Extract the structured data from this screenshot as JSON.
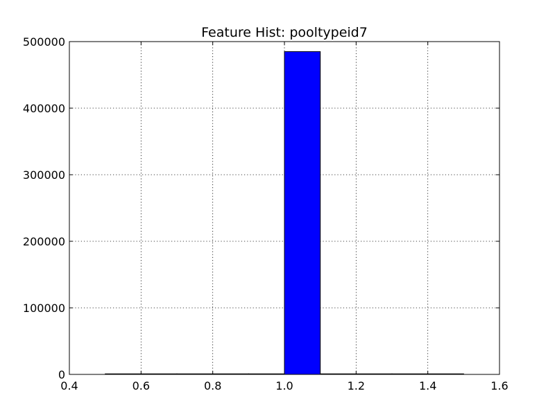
{
  "chart_data": {
    "type": "bar",
    "title": "Feature Hist: pooltypeid7",
    "xlabel": "",
    "ylabel": "",
    "xlim": [
      0.4,
      1.6
    ],
    "ylim": [
      0,
      500000
    ],
    "x_ticks": [
      "0.4",
      "0.6",
      "0.8",
      "1.0",
      "1.2",
      "1.4",
      "1.6"
    ],
    "y_ticks": [
      "0",
      "100000",
      "200000",
      "300000",
      "400000",
      "500000"
    ],
    "grid": true,
    "bar_color": "#0000ff",
    "bins": [
      {
        "x0": 0.5,
        "x1": 0.6,
        "value": 0
      },
      {
        "x0": 0.6,
        "x1": 0.7,
        "value": 0
      },
      {
        "x0": 0.7,
        "x1": 0.8,
        "value": 0
      },
      {
        "x0": 0.8,
        "x1": 0.9,
        "value": 0
      },
      {
        "x0": 0.9,
        "x1": 1.0,
        "value": 0
      },
      {
        "x0": 1.0,
        "x1": 1.1,
        "value": 485000
      },
      {
        "x0": 1.1,
        "x1": 1.2,
        "value": 0
      },
      {
        "x0": 1.2,
        "x1": 1.3,
        "value": 0
      },
      {
        "x0": 1.3,
        "x1": 1.4,
        "value": 0
      },
      {
        "x0": 1.4,
        "x1": 1.5,
        "value": 0
      }
    ]
  }
}
